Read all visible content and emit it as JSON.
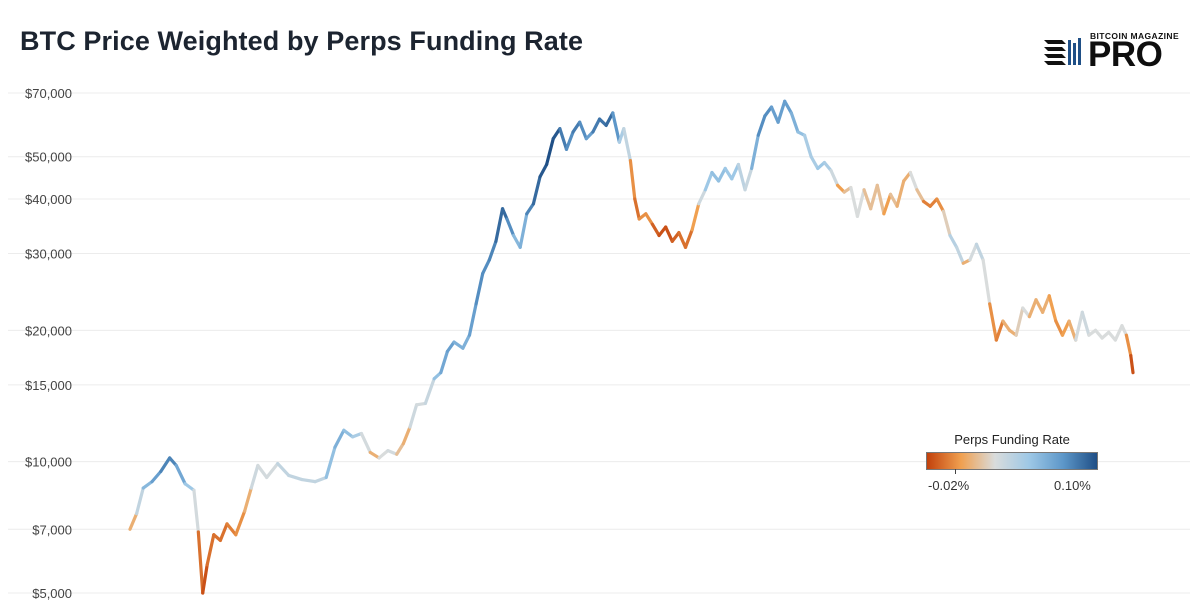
{
  "header": {
    "title": "BTC Price Weighted by Perps Funding Rate"
  },
  "logo": {
    "small_text": "BITCOIN MAGAZINE",
    "big_text": "PRO"
  },
  "legend": {
    "title": "Perps Funding Rate",
    "min_label": "-0.02%",
    "max_label": "0.10%",
    "colors": [
      "#c2410c",
      "#f0a050",
      "#d9dcdc",
      "#9ec8e6",
      "#5d97c9",
      "#1f4f86"
    ]
  },
  "chart_data": {
    "type": "line",
    "title": "BTC Price Weighted by Perps Funding Rate",
    "xlabel": "",
    "ylabel": "",
    "y_scale": "log",
    "ylim": [
      5000,
      70000
    ],
    "y_ticks": [
      {
        "value": 5000,
        "label": "$5,000"
      },
      {
        "value": 7000,
        "label": "$7,000"
      },
      {
        "value": 10000,
        "label": "$10,000"
      },
      {
        "value": 15000,
        "label": "$15,000"
      },
      {
        "value": 20000,
        "label": "$20,000"
      },
      {
        "value": 30000,
        "label": "$30,000"
      },
      {
        "value": 40000,
        "label": "$40,000"
      },
      {
        "value": 50000,
        "label": "$50,000"
      },
      {
        "value": 70000,
        "label": "$70,000"
      }
    ],
    "grid": true,
    "legend_position": "bottom-right",
    "color_encoding": "perps funding rate",
    "series": [
      {
        "name": "BTC Price",
        "x_range": [
          0,
          1000
        ],
        "points": [
          {
            "x": 0,
            "y": 7000,
            "rate": -0.005
          },
          {
            "x": 6,
            "y": 7600,
            "rate": 0.0
          },
          {
            "x": 12,
            "y": 8700,
            "rate": 0.03
          },
          {
            "x": 20,
            "y": 9000,
            "rate": 0.05
          },
          {
            "x": 28,
            "y": 9500,
            "rate": 0.06
          },
          {
            "x": 36,
            "y": 10200,
            "rate": 0.08
          },
          {
            "x": 42,
            "y": 9800,
            "rate": 0.06
          },
          {
            "x": 50,
            "y": 8900,
            "rate": 0.04
          },
          {
            "x": 58,
            "y": 8600,
            "rate": 0.02
          },
          {
            "x": 62,
            "y": 6900,
            "rate": -0.005
          },
          {
            "x": 66,
            "y": 5000,
            "rate": -0.02
          },
          {
            "x": 70,
            "y": 5800,
            "rate": -0.015
          },
          {
            "x": 76,
            "y": 6800,
            "rate": -0.01
          },
          {
            "x": 82,
            "y": 6600,
            "rate": -0.015
          },
          {
            "x": 88,
            "y": 7200,
            "rate": -0.01
          },
          {
            "x": 96,
            "y": 6800,
            "rate": -0.01
          },
          {
            "x": 104,
            "y": 7700,
            "rate": -0.005
          },
          {
            "x": 110,
            "y": 8700,
            "rate": 0.0
          },
          {
            "x": 116,
            "y": 9800,
            "rate": 0.02
          },
          {
            "x": 124,
            "y": 9200,
            "rate": -0.005
          },
          {
            "x": 134,
            "y": 9900,
            "rate": 0.02
          },
          {
            "x": 144,
            "y": 9300,
            "rate": 0.01
          },
          {
            "x": 156,
            "y": 9100,
            "rate": 0.02
          },
          {
            "x": 168,
            "y": 9000,
            "rate": 0.01
          },
          {
            "x": 178,
            "y": 9200,
            "rate": 0.02
          },
          {
            "x": 186,
            "y": 10800,
            "rate": 0.05
          },
          {
            "x": 194,
            "y": 11800,
            "rate": 0.04
          },
          {
            "x": 202,
            "y": 11400,
            "rate": 0.03
          },
          {
            "x": 210,
            "y": 11600,
            "rate": 0.02
          },
          {
            "x": 218,
            "y": 10500,
            "rate": -0.005
          },
          {
            "x": 226,
            "y": 10200,
            "rate": 0.0
          },
          {
            "x": 234,
            "y": 10600,
            "rate": 0.01
          },
          {
            "x": 242,
            "y": 10400,
            "rate": 0.005
          },
          {
            "x": 248,
            "y": 11000,
            "rate": -0.005
          },
          {
            "x": 254,
            "y": 12000,
            "rate": 0.0
          },
          {
            "x": 260,
            "y": 13500,
            "rate": 0.02
          },
          {
            "x": 268,
            "y": 13600,
            "rate": -0.005
          },
          {
            "x": 276,
            "y": 15500,
            "rate": 0.03
          },
          {
            "x": 282,
            "y": 16000,
            "rate": 0.04
          },
          {
            "x": 288,
            "y": 17900,
            "rate": 0.06
          },
          {
            "x": 294,
            "y": 18800,
            "rate": 0.05
          },
          {
            "x": 302,
            "y": 18200,
            "rate": 0.04
          },
          {
            "x": 308,
            "y": 19500,
            "rate": 0.05
          },
          {
            "x": 314,
            "y": 23000,
            "rate": 0.06
          },
          {
            "x": 320,
            "y": 27000,
            "rate": 0.07
          },
          {
            "x": 326,
            "y": 29000,
            "rate": 0.06
          },
          {
            "x": 332,
            "y": 32000,
            "rate": 0.08
          },
          {
            "x": 338,
            "y": 38000,
            "rate": 0.09
          },
          {
            "x": 342,
            "y": 36000,
            "rate": 0.08
          },
          {
            "x": 348,
            "y": 33000,
            "rate": 0.05
          },
          {
            "x": 354,
            "y": 31000,
            "rate": 0.03
          },
          {
            "x": 360,
            "y": 37000,
            "rate": 0.06
          },
          {
            "x": 366,
            "y": 39000,
            "rate": 0.08
          },
          {
            "x": 372,
            "y": 45000,
            "rate": 0.09
          },
          {
            "x": 378,
            "y": 48000,
            "rate": 0.1
          },
          {
            "x": 384,
            "y": 55000,
            "rate": 0.1
          },
          {
            "x": 390,
            "y": 58000,
            "rate": 0.09
          },
          {
            "x": 396,
            "y": 52000,
            "rate": 0.06
          },
          {
            "x": 402,
            "y": 57000,
            "rate": 0.07
          },
          {
            "x": 408,
            "y": 60000,
            "rate": 0.08
          },
          {
            "x": 414,
            "y": 55000,
            "rate": 0.05
          },
          {
            "x": 420,
            "y": 57000,
            "rate": 0.06
          },
          {
            "x": 426,
            "y": 61000,
            "rate": 0.09
          },
          {
            "x": 432,
            "y": 59000,
            "rate": 0.07
          },
          {
            "x": 438,
            "y": 63000,
            "rate": 0.1
          },
          {
            "x": 444,
            "y": 54000,
            "rate": 0.02
          },
          {
            "x": 448,
            "y": 58000,
            "rate": 0.03
          },
          {
            "x": 454,
            "y": 49000,
            "rate": 0.0
          },
          {
            "x": 458,
            "y": 40000,
            "rate": -0.015
          },
          {
            "x": 462,
            "y": 36000,
            "rate": -0.01
          },
          {
            "x": 468,
            "y": 37000,
            "rate": -0.005
          },
          {
            "x": 474,
            "y": 35000,
            "rate": -0.01
          },
          {
            "x": 480,
            "y": 33000,
            "rate": -0.02
          },
          {
            "x": 486,
            "y": 34500,
            "rate": -0.015
          },
          {
            "x": 492,
            "y": 32000,
            "rate": -0.02
          },
          {
            "x": 498,
            "y": 33500,
            "rate": -0.01
          },
          {
            "x": 504,
            "y": 31000,
            "rate": -0.015
          },
          {
            "x": 510,
            "y": 34000,
            "rate": -0.01
          },
          {
            "x": 516,
            "y": 39000,
            "rate": 0.0
          },
          {
            "x": 522,
            "y": 42000,
            "rate": 0.02
          },
          {
            "x": 528,
            "y": 46000,
            "rate": 0.04
          },
          {
            "x": 534,
            "y": 44000,
            "rate": 0.03
          },
          {
            "x": 540,
            "y": 47000,
            "rate": 0.04
          },
          {
            "x": 546,
            "y": 44500,
            "rate": 0.02
          },
          {
            "x": 552,
            "y": 48000,
            "rate": 0.04
          },
          {
            "x": 558,
            "y": 42000,
            "rate": -0.005
          },
          {
            "x": 564,
            "y": 47000,
            "rate": 0.03
          },
          {
            "x": 570,
            "y": 56000,
            "rate": 0.06
          },
          {
            "x": 576,
            "y": 62000,
            "rate": 0.07
          },
          {
            "x": 582,
            "y": 65000,
            "rate": 0.06
          },
          {
            "x": 588,
            "y": 60000,
            "rate": 0.05
          },
          {
            "x": 594,
            "y": 67000,
            "rate": 0.06
          },
          {
            "x": 600,
            "y": 63000,
            "rate": 0.05
          },
          {
            "x": 606,
            "y": 57000,
            "rate": 0.04
          },
          {
            "x": 612,
            "y": 56000,
            "rate": 0.03
          },
          {
            "x": 618,
            "y": 50000,
            "rate": 0.02
          },
          {
            "x": 624,
            "y": 47000,
            "rate": 0.03
          },
          {
            "x": 630,
            "y": 48500,
            "rate": 0.03
          },
          {
            "x": 636,
            "y": 46500,
            "rate": 0.02
          },
          {
            "x": 642,
            "y": 43000,
            "rate": 0.0
          },
          {
            "x": 648,
            "y": 41500,
            "rate": -0.01
          },
          {
            "x": 654,
            "y": 42500,
            "rate": 0.01
          },
          {
            "x": 660,
            "y": 36500,
            "rate": 0.0
          },
          {
            "x": 666,
            "y": 42000,
            "rate": 0.01
          },
          {
            "x": 672,
            "y": 38000,
            "rate": -0.01
          },
          {
            "x": 678,
            "y": 43000,
            "rate": 0.01
          },
          {
            "x": 684,
            "y": 37000,
            "rate": -0.01
          },
          {
            "x": 690,
            "y": 41000,
            "rate": 0.0
          },
          {
            "x": 696,
            "y": 38500,
            "rate": 0.0
          },
          {
            "x": 702,
            "y": 44000,
            "rate": -0.005
          },
          {
            "x": 708,
            "y": 46000,
            "rate": 0.0
          },
          {
            "x": 714,
            "y": 42000,
            "rate": 0.01
          },
          {
            "x": 720,
            "y": 39500,
            "rate": -0.01
          },
          {
            "x": 726,
            "y": 38500,
            "rate": -0.01
          },
          {
            "x": 732,
            "y": 40000,
            "rate": -0.01
          },
          {
            "x": 738,
            "y": 37500,
            "rate": -0.005
          },
          {
            "x": 744,
            "y": 33000,
            "rate": 0.01
          },
          {
            "x": 750,
            "y": 31000,
            "rate": 0.03
          },
          {
            "x": 756,
            "y": 28500,
            "rate": 0.0
          },
          {
            "x": 762,
            "y": 29000,
            "rate": -0.005
          },
          {
            "x": 768,
            "y": 31500,
            "rate": 0.02
          },
          {
            "x": 774,
            "y": 29000,
            "rate": 0.01
          },
          {
            "x": 780,
            "y": 23000,
            "rate": 0.0
          },
          {
            "x": 786,
            "y": 19000,
            "rate": -0.015
          },
          {
            "x": 792,
            "y": 21000,
            "rate": -0.005
          },
          {
            "x": 798,
            "y": 20000,
            "rate": 0.0
          },
          {
            "x": 804,
            "y": 19500,
            "rate": -0.005
          },
          {
            "x": 810,
            "y": 22500,
            "rate": 0.01
          },
          {
            "x": 816,
            "y": 21500,
            "rate": 0.0
          },
          {
            "x": 822,
            "y": 23500,
            "rate": -0.005
          },
          {
            "x": 828,
            "y": 22000,
            "rate": 0.0
          },
          {
            "x": 834,
            "y": 24000,
            "rate": -0.005
          },
          {
            "x": 840,
            "y": 21000,
            "rate": -0.005
          },
          {
            "x": 846,
            "y": 19500,
            "rate": -0.01
          },
          {
            "x": 852,
            "y": 21000,
            "rate": 0.0
          },
          {
            "x": 858,
            "y": 19000,
            "rate": -0.005
          },
          {
            "x": 864,
            "y": 22000,
            "rate": 0.02
          },
          {
            "x": 870,
            "y": 19500,
            "rate": 0.0
          },
          {
            "x": 876,
            "y": 20000,
            "rate": 0.01
          },
          {
            "x": 882,
            "y": 19200,
            "rate": 0.0
          },
          {
            "x": 888,
            "y": 19800,
            "rate": 0.01
          },
          {
            "x": 894,
            "y": 19000,
            "rate": 0.0
          },
          {
            "x": 900,
            "y": 20500,
            "rate": 0.01
          },
          {
            "x": 904,
            "y": 19500,
            "rate": 0.0
          },
          {
            "x": 908,
            "y": 17500,
            "rate": -0.015
          },
          {
            "x": 910,
            "y": 16000,
            "rate": -0.02
          }
        ]
      }
    ]
  }
}
